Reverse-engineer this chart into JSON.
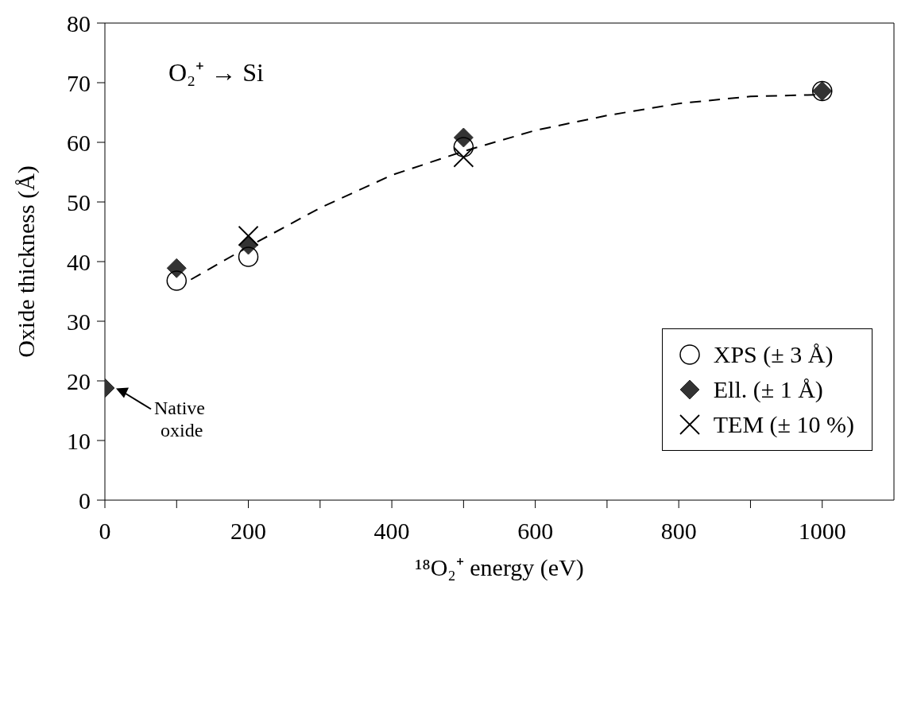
{
  "chart_data": {
    "type": "scatter",
    "xlabel": "¹⁸O₂⁺ energy (eV)",
    "ylabel": "Oxide thickness (Å)",
    "xlim": [
      0,
      1100
    ],
    "ylim": [
      0,
      80
    ],
    "xticks": [
      0,
      {
        "value": 100,
        "label": null
      },
      200,
      {
        "value": 300,
        "label": null
      },
      400,
      {
        "value": 500,
        "label": null
      },
      600,
      {
        "value": 700,
        "label": null
      },
      800,
      {
        "value": 900,
        "label": null
      },
      1000
    ],
    "yticks": [
      0,
      10,
      20,
      30,
      40,
      50,
      60,
      70,
      80
    ],
    "grid": false,
    "legend": "right",
    "series": [
      {
        "name": "XPS (± 3 Å)",
        "color": "#000000",
        "marker": "circle",
        "x": [
          100,
          200,
          500,
          1000
        ],
        "values": [
          36.8,
          40.8,
          59.2,
          68.6
        ]
      },
      {
        "name": "Ell. (± 1 Å)",
        "color": "#333333",
        "marker": "diamond",
        "x": [
          0,
          100,
          200,
          500,
          1000
        ],
        "values": [
          18.8,
          38.9,
          42.8,
          60.8,
          68.6
        ]
      },
      {
        "name": "TEM (± 10 %)",
        "color": "#000000",
        "marker": "cross",
        "x": [
          200,
          500
        ],
        "values": [
          44.3,
          57.5
        ]
      },
      {
        "type": "line",
        "color": "#000000",
        "line_style": "dashed",
        "marker": "none",
        "x": [
          120,
          200,
          300,
          400,
          500,
          600,
          700,
          800,
          900,
          1000
        ],
        "values": [
          37,
          42.5,
          49,
          54.5,
          58.5,
          62,
          64.5,
          66.5,
          67.7,
          68
        ]
      }
    ],
    "annotations": [
      "O₂⁺ → Si",
      {
        "text": "Native oxide",
        "x": 0,
        "y": 19
      }
    ]
  }
}
